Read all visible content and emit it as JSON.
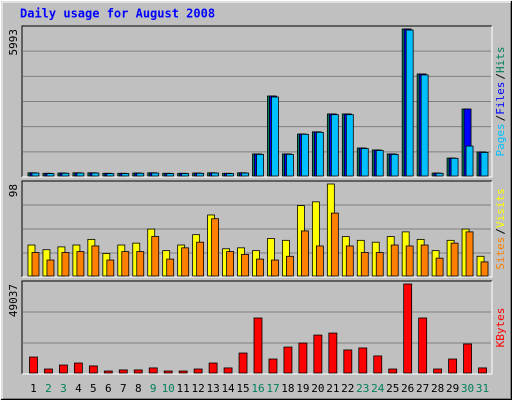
{
  "chart_data": {
    "type": "bar",
    "title": "Daily usage for August 2008",
    "categories": [
      "1",
      "2",
      "3",
      "4",
      "5",
      "6",
      "7",
      "8",
      "9",
      "10",
      "11",
      "12",
      "13",
      "14",
      "15",
      "16",
      "17",
      "18",
      "19",
      "20",
      "21",
      "22",
      "23",
      "24",
      "25",
      "26",
      "27",
      "28",
      "29",
      "30",
      "31"
    ],
    "category_colors": [
      "#000000",
      "#00805c",
      "#00805c",
      "#000000",
      "#000000",
      "#000000",
      "#000000",
      "#000000",
      "#00805c",
      "#00805c",
      "#000000",
      "#000000",
      "#000000",
      "#000000",
      "#000000",
      "#00805c",
      "#00805c",
      "#000000",
      "#000000",
      "#000000",
      "#000000",
      "#000000",
      "#00805c",
      "#00805c",
      "#000000",
      "#000000",
      "#000000",
      "#000000",
      "#000000",
      "#00805c",
      "#00805c"
    ],
    "legend_separator": "/",
    "panels": [
      {
        "ylim": [
          0,
          5993
        ],
        "yticks": [
          5993
        ],
        "series": [
          {
            "name": "Hits",
            "color": "#00805c",
            "values": [
              130,
              110,
              120,
              130,
              130,
              110,
              110,
              120,
              130,
              110,
              110,
              120,
              130,
              110,
              130,
              900,
              3260,
              900,
              1710,
              1800,
              2530,
              2530,
              1140,
              1060,
              900,
              5993,
              4160,
              120,
              730,
              2730,
              980
            ]
          },
          {
            "name": "Files",
            "color": "#0000ff",
            "values": [
              130,
              110,
              120,
              130,
              130,
              110,
              110,
              120,
              130,
              110,
              110,
              120,
              130,
              110,
              130,
              900,
              3260,
              900,
              1710,
              1800,
              2530,
              2530,
              1140,
              1060,
              900,
              5993,
              4160,
              120,
              730,
              2730,
              980
            ]
          },
          {
            "name": "Pages",
            "color": "#00c0ff",
            "values": [
              120,
              100,
              110,
              120,
              120,
              100,
              100,
              110,
              120,
              100,
              100,
              110,
              120,
              100,
              120,
              880,
              3220,
              880,
              1700,
              1780,
              2500,
              2500,
              1120,
              1040,
              880,
              5950,
              4120,
              110,
              720,
              1220,
              960
            ]
          }
        ]
      },
      {
        "ylim": [
          0,
          98
        ],
        "yticks": [
          98
        ],
        "series": [
          {
            "name": "Visits",
            "color": "#ffff00",
            "values": [
              33,
              28,
              31,
              33,
              39,
              24,
              33,
              35,
              50,
              27,
              33,
              44,
              65,
              29,
              30,
              27,
              40,
              38,
              75,
              79,
              98,
              42,
              38,
              36,
              42,
              47,
              39,
              27,
              38,
              50,
              21
            ]
          },
          {
            "name": "Sites",
            "color": "#ff8000",
            "values": [
              25,
              17,
              25,
              26,
              32,
              17,
              26,
              26,
              42,
              18,
              30,
              36,
              61,
              26,
              23,
              18,
              17,
              21,
              48,
              32,
              67,
              32,
              25,
              25,
              33,
              32,
              33,
              19,
              35,
              47,
              15
            ]
          }
        ]
      },
      {
        "ylim": [
          0,
          49037
        ],
        "yticks": [
          49037
        ],
        "series": [
          {
            "name": "KBytes",
            "color": "#ff0000",
            "values": [
              8800,
              2200,
              4400,
              5500,
              3900,
              1100,
              1700,
              1700,
              2800,
              1100,
              1100,
              2200,
              5500,
              2800,
              11000,
              30300,
              7700,
              14300,
              16500,
              20900,
              22000,
              12700,
              13800,
              9400,
              2200,
              49037,
              30300,
              2200,
              7700,
              16000,
              2800
            ]
          }
        ]
      }
    ]
  }
}
